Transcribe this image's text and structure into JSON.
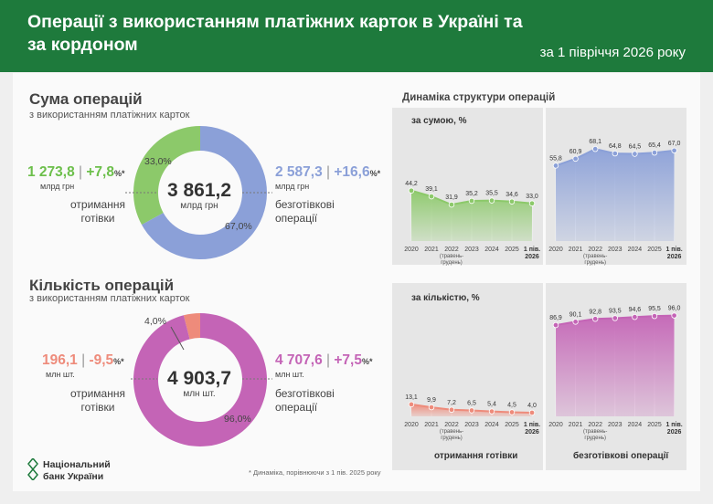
{
  "header": {
    "title": "Операції з використанням платіжних карток в Україні та за кордоном",
    "period": "за 1 півріччя 2026 року"
  },
  "sum_section": {
    "title": "Сума операцій",
    "subtitle": "з використанням платіжних карток",
    "total": "3 861,2",
    "total_unit": "млрд грн",
    "left": {
      "value": "1 273,8",
      "separator": "|",
      "change": "+7,8",
      "change_unit": "%*",
      "unit": "млрд грн",
      "desc_line1": "отримання",
      "desc_line2": "готівки",
      "share": "33,0%"
    },
    "right": {
      "value": "2 587,3",
      "separator": "|",
      "change": "+16,6",
      "change_unit": "%*",
      "unit": "млрд грн",
      "desc_line1": "безготівкові",
      "desc_line2": "операції",
      "share": "67,0%"
    }
  },
  "count_section": {
    "title": "Кількість операцій",
    "subtitle": "з використанням платіжних карток",
    "total": "4 903,7",
    "total_unit": "млн шт.",
    "left": {
      "value": "196,1",
      "separator": "|",
      "change": "-9,5",
      "change_unit": "%*",
      "unit": "млн шт.",
      "desc_line1": "отримання",
      "desc_line2": "готівки",
      "share": "4,0%"
    },
    "right": {
      "value": "4 707,6",
      "separator": "|",
      "change": "+7,5",
      "change_unit": "%*",
      "unit": "млн шт.",
      "desc_line1": "безготівкові",
      "desc_line2": "операції",
      "share": "96,0%"
    }
  },
  "dynamics": {
    "title": "Динаміка структури операцій",
    "by_sum_label": "за сумою, %",
    "by_count_label": "за кількістю, %",
    "cash_label": "отримання готівки",
    "cashless_label": "безготівкові операції"
  },
  "colors": {
    "green": "#8cc96a",
    "blue": "#8ba0d8",
    "salmon": "#ee8b7b",
    "pink": "#c464b6",
    "header": "#1e7a3c"
  },
  "footer": {
    "logo_line1": "Національний",
    "logo_line2": "банк України",
    "footnote": "* Динаміка, порівнюючи з 1 пів. 2025 року"
  },
  "chart_data": [
    {
      "type": "pie",
      "title": "Сума операцій",
      "labels": [
        "отримання готівки",
        "безготівкові операції"
      ],
      "values": [
        33.0,
        67.0
      ],
      "colors": [
        "#8cc96a",
        "#8ba0d8"
      ]
    },
    {
      "type": "pie",
      "title": "Кількість операцій",
      "labels": [
        "отримання готівки",
        "безготівкові операції"
      ],
      "values": [
        4.0,
        96.0
      ],
      "colors": [
        "#ee8b7b",
        "#c464b6"
      ]
    },
    {
      "type": "area",
      "id": "sum-cash",
      "group": "за сумою, %",
      "categories": [
        "2020",
        "2021",
        "2022",
        "2023",
        "2024",
        "2025",
        "1 пів. 2026"
      ],
      "values": [
        44.2,
        39.1,
        31.9,
        35.2,
        35.5,
        34.6,
        33.0
      ],
      "labels": [
        "44,2",
        "39,1",
        "31,9",
        "35,2",
        "35,5",
        "34,6",
        "33,0"
      ],
      "ylim": [
        0,
        100
      ],
      "color": "#8cc96a"
    },
    {
      "type": "area",
      "id": "sum-cashless",
      "group": "за сумою, %",
      "categories": [
        "2020",
        "2021",
        "2022",
        "2023",
        "2024",
        "2025",
        "1 пів. 2026"
      ],
      "values": [
        55.8,
        60.9,
        68.1,
        64.8,
        64.5,
        65.4,
        67.0
      ],
      "labels": [
        "55,8",
        "60,9",
        "68,1",
        "64,8",
        "64,5",
        "65,4",
        "67,0"
      ],
      "ylim": [
        0,
        100
      ],
      "color": "#8ba0d8"
    },
    {
      "type": "area",
      "id": "count-cash",
      "group": "за кількістю, %",
      "categories": [
        "2020",
        "2021",
        "2022",
        "2023",
        "2024",
        "2025",
        "1 пів. 2026"
      ],
      "values": [
        13.1,
        9.9,
        7.2,
        6.5,
        5.4,
        4.5,
        4.0
      ],
      "labels": [
        "13,1",
        "9,9",
        "7,2",
        "6,5",
        "5,4",
        "4,5",
        "4,0"
      ],
      "ylim": [
        0,
        100
      ],
      "color": "#ee8b7b"
    },
    {
      "type": "area",
      "id": "count-cashless",
      "group": "за кількістю, %",
      "categories": [
        "2020",
        "2021",
        "2022",
        "2023",
        "2024",
        "2025",
        "1 пів. 2026"
      ],
      "values": [
        86.9,
        90.1,
        92.8,
        93.5,
        94.6,
        95.5,
        96.0
      ],
      "labels": [
        "86,9",
        "90,1",
        "92,8",
        "93,5",
        "94,6",
        "95,5",
        "96,0"
      ],
      "ylim": [
        0,
        100
      ],
      "color": "#c464b6"
    }
  ],
  "x_ticks": {
    "years": [
      "2020",
      "2021",
      "2022",
      "2023",
      "2024",
      "2025"
    ],
    "note_2022_line1": "(травень-",
    "note_2022_line2": "грудень)",
    "last_line1": "1 пів.",
    "last_line2": "2026"
  }
}
